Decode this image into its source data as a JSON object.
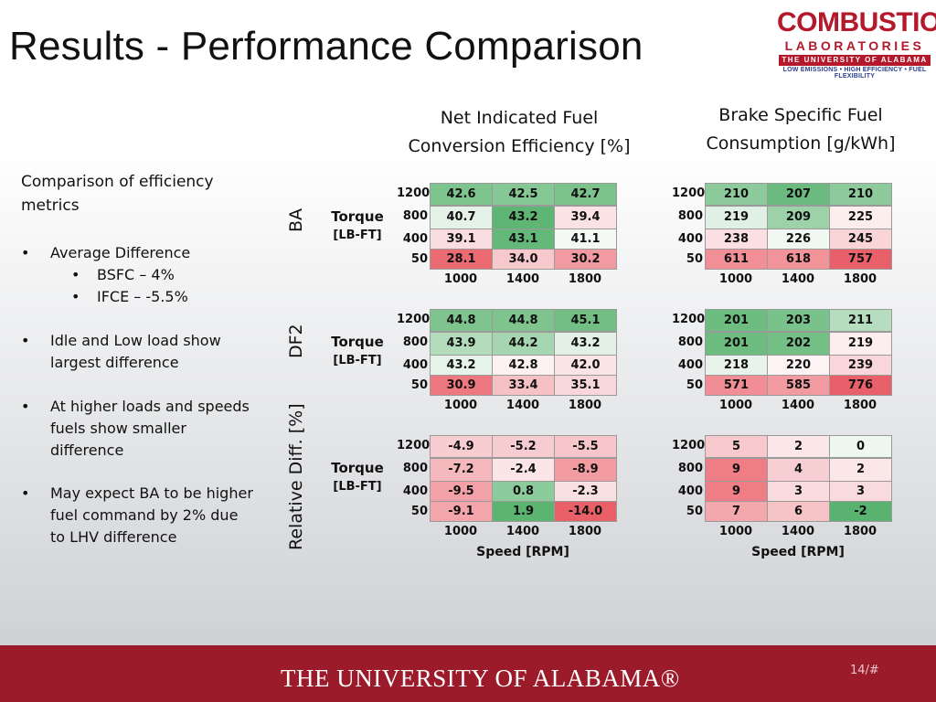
{
  "title": "Results - Performance Comparison",
  "logo": {
    "line1": "COMBUSTION",
    "line2": "LABORATORIES",
    "line3": "THE UNIVERSITY OF ALABAMA",
    "line4": "LOW EMISSIONS • HIGH EFFICIENCY • FUEL FLEXIBILITY"
  },
  "left": {
    "heading_line1": "Comparison of efficiency",
    "heading_line2": "metrics",
    "b1": "Average Difference",
    "b1a": "BSFC – 4%",
    "b1b": "IFCE –  -5.5%",
    "b2_1": "Idle and Low load show",
    "b2_2": "largest difference",
    "b3_1": "At higher loads and speeds",
    "b3_2": "fuels show smaller",
    "b3_3": "difference",
    "b4_1": "May expect BA to be higher",
    "b4_2": "fuel command by 2% due",
    "b4_3": "to LHV difference",
    "bullet_char": "•"
  },
  "headers": {
    "nifce_1": "Net Indicated Fuel",
    "nifce_2": "Conversion Efficiency [%]",
    "bsfc_1": "Brake Specific Fuel",
    "bsfc_2": "Consumption [g/kWh]"
  },
  "labels": {
    "ba": "BA",
    "df2": "DF2",
    "reldiff": "Relative Diff. [%]",
    "torque": "Torque",
    "torque_unit": "[LB-FT]",
    "speed": "Speed [RPM]"
  },
  "rows": [
    "1200",
    "800",
    "400",
    "50"
  ],
  "cols": [
    "1000",
    "1400",
    "1800"
  ],
  "tables": {
    "ba_nifce": [
      [
        "42.6",
        "42.5",
        "42.7"
      ],
      [
        "40.7",
        "43.2",
        "39.4"
      ],
      [
        "39.1",
        "43.1",
        "41.1"
      ],
      [
        "28.1",
        "34.0",
        "30.2"
      ]
    ],
    "ba_bsfc": [
      [
        "210",
        "207",
        "210"
      ],
      [
        "219",
        "209",
        "225"
      ],
      [
        "238",
        "226",
        "245"
      ],
      [
        "611",
        "618",
        "757"
      ]
    ],
    "df2_nifce": [
      [
        "44.8",
        "44.8",
        "45.1"
      ],
      [
        "43.9",
        "44.2",
        "43.2"
      ],
      [
        "43.2",
        "42.8",
        "42.0"
      ],
      [
        "30.9",
        "33.4",
        "35.1"
      ]
    ],
    "df2_bsfc": [
      [
        "201",
        "203",
        "211"
      ],
      [
        "201",
        "202",
        "219"
      ],
      [
        "218",
        "220",
        "239"
      ],
      [
        "571",
        "585",
        "776"
      ]
    ],
    "rel_nifce": [
      [
        "-4.9",
        "-5.2",
        "-5.5"
      ],
      [
        "-7.2",
        "-2.4",
        "-8.9"
      ],
      [
        "-9.5",
        "0.8",
        "-2.3"
      ],
      [
        "-9.1",
        "1.9",
        "-14.0"
      ]
    ],
    "rel_bsfc": [
      [
        "5",
        "2",
        "0"
      ],
      [
        "9",
        "4",
        "2"
      ],
      [
        "9",
        "3",
        "3"
      ],
      [
        "7",
        "6",
        "-2"
      ]
    ]
  },
  "colors": {
    "ba_nifce": [
      [
        "#7ec48f",
        "#85c795",
        "#7cc28d"
      ],
      [
        "#e5f2e8",
        "#5fb574",
        "#fbe3e5"
      ],
      [
        "#f9dde0",
        "#64b879",
        "#f4f9f5"
      ],
      [
        "#ec6a72",
        "#f6c9cd",
        "#f19aa1"
      ]
    ],
    "ba_bsfc": [
      [
        "#8ecb9c",
        "#6bbb80",
        "#8ecb9c"
      ],
      [
        "#e1f0e4",
        "#9dd2a9",
        "#fdeeee"
      ],
      [
        "#fbdfe2",
        "#f1f8f2",
        "#f9d5d8"
      ],
      [
        "#f28f96",
        "#f29299",
        "#e9606a"
      ]
    ],
    "df2_nifce": [
      [
        "#7fc48f",
        "#7fc48f",
        "#72be85"
      ],
      [
        "#b3dcbc",
        "#a5d6b1",
        "#e2f0e5"
      ],
      [
        "#e6f3e9",
        "#fdf1f2",
        "#fbe4e6"
      ],
      [
        "#ee7880",
        "#f6c1c5",
        "#f8d7da"
      ]
    ],
    "df2_bsfc": [
      [
        "#6dbd81",
        "#79c28b",
        "#b7ddc1"
      ],
      [
        "#6dbd81",
        "#73bf86",
        "#fcedee"
      ],
      [
        "#e8f4eb",
        "#fdf3f4",
        "#f9d6d9"
      ],
      [
        "#f18d94",
        "#f19ba1",
        "#e9606a"
      ]
    ],
    "rel_nifce": [
      [
        "#f7cdd1",
        "#f7ccd0",
        "#f6c6ca"
      ],
      [
        "#f5b8bd",
        "#fbe5e7",
        "#f29ca2"
      ],
      [
        "#f2a1a7",
        "#8ccb9b",
        "#fbe0e2"
      ],
      [
        "#f2a6ab",
        "#5cb471",
        "#ea6069"
      ]
    ],
    "rel_bsfc": [
      [
        "#f7c9cd",
        "#fbe6e8",
        "#eef7f0"
      ],
      [
        "#ef7d85",
        "#f7cfd2",
        "#fbe6e8"
      ],
      [
        "#ef7d85",
        "#f9dadd",
        "#f9dadd"
      ],
      [
        "#f3a8ad",
        "#f6c3c7",
        "#59b26f"
      ]
    ]
  },
  "footer": {
    "text": "THE UNIVERSITY OF ALABAMA®",
    "page": "14/#"
  }
}
